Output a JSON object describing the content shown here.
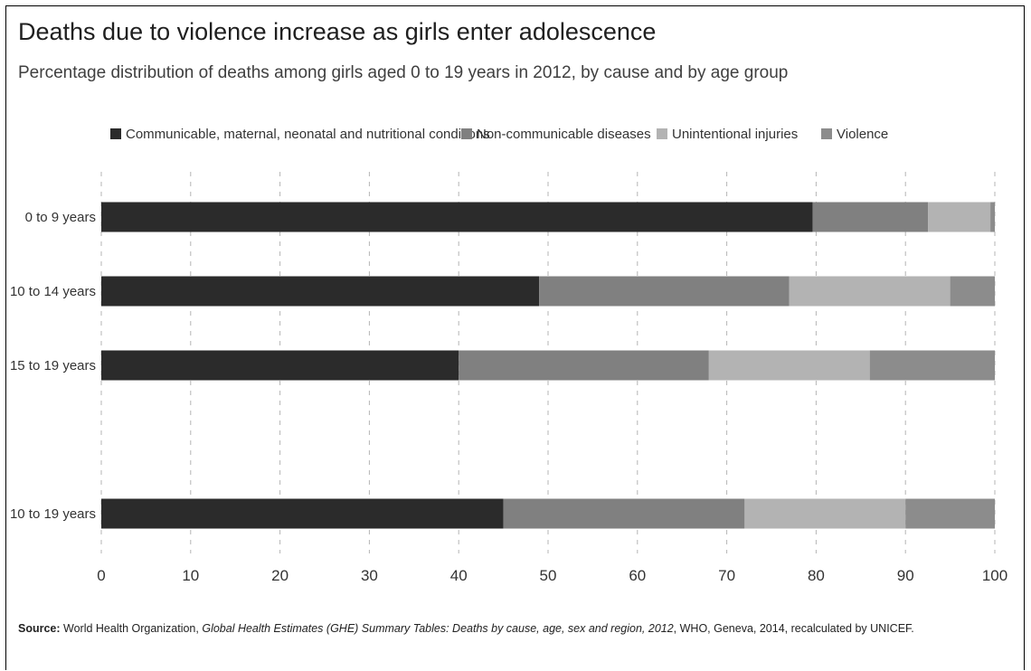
{
  "title": "Deaths due to violence increase as girls enter adolescence",
  "subtitle": "Percentage distribution of deaths among girls aged 0 to 19 years in 2012, by cause and by age group",
  "source": {
    "label": "Source:",
    "text1": " World Health Organization, ",
    "italic": "Global Health Estimates (GHE) Summary Tables: Deaths by cause, age, sex and region, 2012",
    "text2": ", WHO, Geneva, 2014, recalculated by UNICEF."
  },
  "chart_data": {
    "type": "bar",
    "orientation": "horizontal",
    "stacked": true,
    "title": "Deaths due to violence increase as girls enter adolescence",
    "subtitle": "Percentage distribution of deaths among girls aged 0 to 19 years in 2012, by cause and by age group",
    "categories": [
      "0 to 9 years",
      "10 to 14 years",
      "15 to 19 years",
      "10 to 19 years"
    ],
    "series": [
      {
        "name": "Communicable, maternal, neonatal and nutritional conditions",
        "color": "#2b2b2b",
        "values": [
          80,
          49,
          40,
          45
        ]
      },
      {
        "name": "Non-communicable diseases",
        "color": "#808080",
        "values": [
          13,
          28,
          28,
          27
        ]
      },
      {
        "name": "Unintentional injuries",
        "color": "#b3b3b3",
        "values": [
          7,
          18,
          18,
          18
        ]
      },
      {
        "name": "Violence",
        "color": "#8c8c8c",
        "values": [
          0.5,
          5,
          14,
          10
        ]
      }
    ],
    "xlim": [
      0,
      100
    ],
    "xticks": [
      0,
      10,
      20,
      30,
      40,
      50,
      60,
      70,
      80,
      90,
      100
    ],
    "grid": true,
    "legend": "top"
  }
}
